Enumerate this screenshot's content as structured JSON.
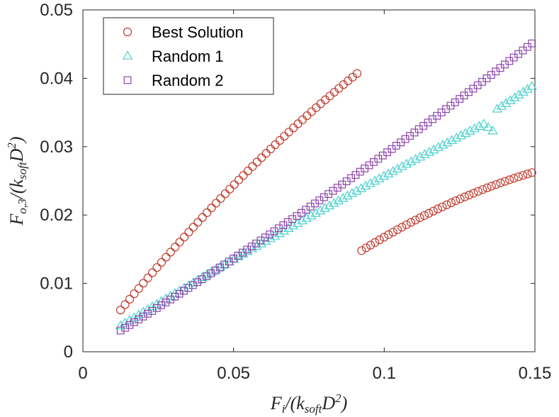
{
  "chart_data": {
    "type": "scatter",
    "title": "",
    "xlabel": "Fi/(ksoftD2)",
    "ylabel": "Fo,3/(ksoftD2)",
    "xlim": [
      0,
      0.15
    ],
    "ylim": [
      0,
      0.05
    ],
    "x_ticks": [
      "0",
      "0.05",
      "0.1",
      "0.15"
    ],
    "y_ticks": [
      "0",
      "0.01",
      "0.02",
      "0.03",
      "0.04",
      "0.05"
    ],
    "grid": false,
    "legend_position": "top-left",
    "series": [
      {
        "name": "Best Solution",
        "marker": "circle",
        "color": "#c0392b",
        "segments": [
          {
            "x_start": 0.0125,
            "x_end": 0.091,
            "count": 53,
            "y_start": 0.0061,
            "y_end": 0.0407,
            "curvature": -0.2
          },
          {
            "x_start": 0.0925,
            "x_end": 0.149,
            "count": 39,
            "y_start": 0.0148,
            "y_end": 0.0262,
            "curvature": -0.35
          }
        ]
      },
      {
        "name": "Random 1",
        "marker": "triangle",
        "color": "#48d1cc",
        "segments": [
          {
            "x_start": 0.0125,
            "x_end": 0.133,
            "count": 81,
            "y_start": 0.0038,
            "y_end": 0.0333,
            "curvature": -0.08,
            "tail_end": 0.0333
          },
          {
            "x_start": 0.1345,
            "x_end": 0.136,
            "count": 2,
            "y_start": 0.0328,
            "y_end": 0.0323,
            "curvature": 0
          },
          {
            "x_start": 0.1375,
            "x_end": 0.149,
            "count": 9,
            "y_start": 0.0355,
            "y_end": 0.0388,
            "curvature": 0
          }
        ]
      },
      {
        "name": "Random 2",
        "marker": "square",
        "color": "#8e44ad",
        "segments": [
          {
            "x_start": 0.0125,
            "x_end": 0.149,
            "count": 92,
            "y_start": 0.0031,
            "y_end": 0.0451,
            "curvature": 0.12
          }
        ]
      }
    ]
  }
}
